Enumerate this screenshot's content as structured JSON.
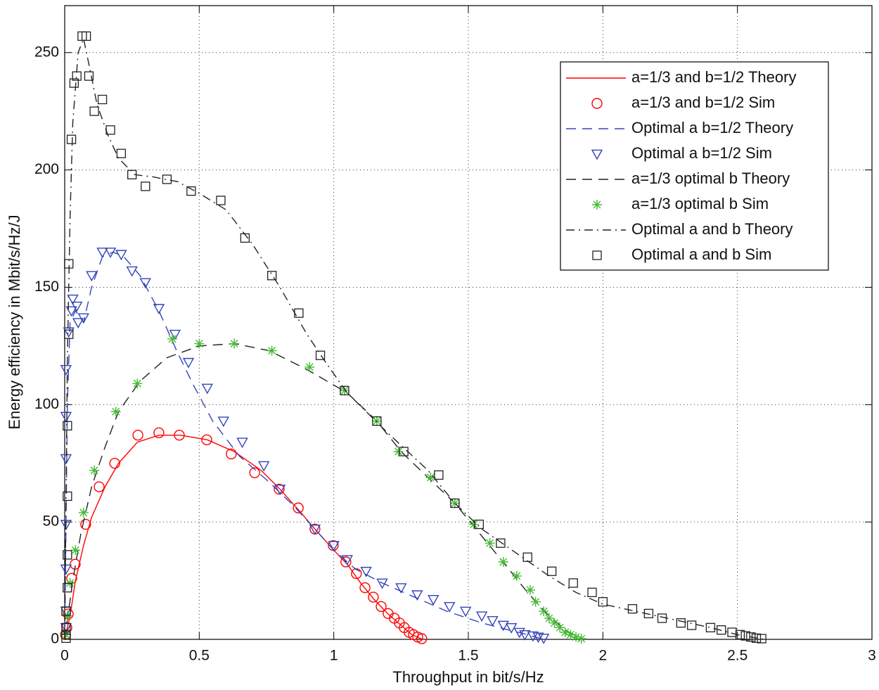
{
  "chart_data": {
    "type": "line",
    "xlabel": "Throughput in bit/s/Hz",
    "ylabel": "Energy efficiency in Mbit/s/Hz/J",
    "xlim": [
      0,
      3
    ],
    "ylim": [
      0,
      270
    ],
    "xticks": [
      0,
      0.5,
      1,
      1.5,
      2,
      2.5,
      3
    ],
    "yticks": [
      0,
      50,
      100,
      150,
      200,
      250
    ],
    "grid": true,
    "legend": "upper right",
    "series": [
      {
        "name": "a=1/3 and b=1/2 Theory",
        "color": "#ff0000",
        "dash": "solid",
        "marker": "none",
        "x": [
          0,
          0.02,
          0.04,
          0.07,
          0.1,
          0.15,
          0.2,
          0.27,
          0.35,
          0.43,
          0.53,
          0.63,
          0.73,
          0.8,
          0.87,
          0.93,
          1.0,
          1.05,
          1.1,
          1.15,
          1.2,
          1.25,
          1.29,
          1.32,
          1.33
        ],
        "values": [
          0,
          10,
          25,
          40,
          52,
          65,
          75,
          84,
          87,
          87,
          85,
          80,
          72,
          64,
          55,
          47,
          38,
          32,
          24,
          17,
          11,
          6,
          2,
          0.5,
          0
        ]
      },
      {
        "name": "a=1/3 and b=1/2 Sim",
        "color": "#ff0000",
        "dash": "none",
        "marker": "circle",
        "x": [
          0.003,
          0.008,
          0.013,
          0.026,
          0.039,
          0.078,
          0.128,
          0.186,
          0.272,
          0.35,
          0.426,
          0.528,
          0.619,
          0.706,
          0.797,
          0.868,
          0.93,
          0.998,
          1.045,
          1.084,
          1.116,
          1.147,
          1.176,
          1.202,
          1.225,
          1.244,
          1.262,
          1.28,
          1.296,
          1.312,
          1.327
        ],
        "values": [
          2,
          5,
          10.8,
          26,
          32,
          49,
          65,
          75,
          87,
          88,
          87,
          85,
          79,
          71,
          64,
          56,
          47,
          40,
          33,
          28,
          22,
          18,
          14,
          11,
          9,
          7,
          5,
          3,
          2,
          1,
          0.3
        ]
      },
      {
        "name": "Optimal a b=1/2 Theory",
        "color": "#3344bb",
        "dash": "dashed",
        "marker": "none",
        "x": [
          0,
          0.005,
          0.01,
          0.02,
          0.04,
          0.07,
          0.1,
          0.14,
          0.18,
          0.22,
          0.28,
          0.35,
          0.42,
          0.48,
          0.55,
          0.65,
          0.75,
          0.85,
          0.93,
          1.0,
          1.08,
          1.18,
          1.3,
          1.42,
          1.55,
          1.65,
          1.72,
          1.78
        ],
        "values": [
          0,
          50,
          100,
          135,
          140,
          135,
          150,
          163,
          165,
          163,
          155,
          140,
          122,
          108,
          93,
          78,
          68,
          57,
          47,
          38,
          30,
          24,
          18,
          12,
          7,
          4,
          2,
          0
        ]
      },
      {
        "name": "Optimal a b=1/2 Sim",
        "color": "#3344bb",
        "dash": "none",
        "marker": "triangle",
        "x": [
          0.005,
          0.005,
          0.005,
          0.005,
          0.005,
          0.005,
          0.005,
          0.015,
          0.025,
          0.03,
          0.045,
          0.05,
          0.07,
          0.1,
          0.14,
          0.17,
          0.21,
          0.25,
          0.3,
          0.35,
          0.41,
          0.46,
          0.53,
          0.59,
          0.66,
          0.74,
          0.8,
          0.93,
          1.0,
          1.05,
          1.12,
          1.18,
          1.25,
          1.31,
          1.37,
          1.43,
          1.49,
          1.55,
          1.59,
          1.63,
          1.66,
          1.69,
          1.71,
          1.74,
          1.76,
          1.78
        ],
        "values": [
          5,
          12,
          30,
          49,
          77,
          95,
          115,
          131,
          140,
          145,
          142,
          135,
          137,
          155,
          165,
          165,
          164,
          157,
          152,
          141,
          130,
          118,
          107,
          93,
          84,
          74,
          64,
          47,
          40,
          34,
          29,
          24,
          22,
          19,
          17,
          14,
          12,
          10,
          8,
          6,
          5,
          3,
          2,
          1.5,
          1,
          0.5
        ]
      },
      {
        "name": "a=1/3 optimal b Theory",
        "color": "#222222",
        "dash": "dashed",
        "marker": "none",
        "x": [
          0,
          0.03,
          0.06,
          0.1,
          0.15,
          0.2,
          0.28,
          0.38,
          0.5,
          0.63,
          0.76,
          0.9,
          1.05,
          1.16,
          1.25,
          1.35,
          1.45,
          1.55,
          1.65,
          1.72,
          1.8,
          1.86,
          1.92
        ],
        "values": [
          0,
          25,
          45,
          65,
          82,
          97,
          110,
          120,
          125,
          126,
          123,
          115,
          105,
          93,
          80,
          69,
          58,
          44,
          30,
          20,
          10,
          4,
          0
        ]
      },
      {
        "name": "a=1/3 optimal b Sim",
        "color": "#44bb33",
        "dash": "none",
        "marker": "star",
        "x": [
          0.005,
          0.01,
          0.02,
          0.04,
          0.07,
          0.11,
          0.19,
          0.27,
          0.4,
          0.5,
          0.63,
          0.77,
          0.91,
          1.04,
          1.16,
          1.24,
          1.36,
          1.45,
          1.52,
          1.58,
          1.63,
          1.68,
          1.73,
          1.75,
          1.78,
          1.8,
          1.82,
          1.84,
          1.86,
          1.88,
          1.9,
          1.92
        ],
        "values": [
          2,
          10,
          24,
          38,
          54,
          72,
          97,
          109,
          128,
          126,
          126,
          123,
          116,
          106,
          93,
          80,
          69,
          58,
          49,
          41,
          33,
          27,
          21,
          16,
          12,
          9,
          7,
          5,
          3,
          2,
          1,
          0.3
        ]
      },
      {
        "name": "Optimal a and b Theory",
        "color": "#222222",
        "dash": "dashdot",
        "marker": "none",
        "x": [
          0,
          0.005,
          0.01,
          0.02,
          0.03,
          0.05,
          0.07,
          0.09,
          0.12,
          0.16,
          0.2,
          0.26,
          0.33,
          0.42,
          0.5,
          0.6,
          0.7,
          0.8,
          0.9,
          0.97,
          1.05,
          1.2,
          1.35,
          1.45,
          1.55,
          1.7,
          1.8,
          1.9,
          2.0,
          2.2,
          2.4,
          2.5,
          2.6
        ],
        "values": [
          0,
          60,
          120,
          180,
          220,
          250,
          256,
          245,
          228,
          215,
          205,
          198,
          197,
          195,
          190,
          183,
          168,
          150,
          130,
          118,
          105,
          88,
          72,
          58,
          47,
          35,
          27,
          20,
          15,
          10,
          5,
          2,
          0
        ]
      },
      {
        "name": "Optimal a and b Sim",
        "color": "#222222",
        "dash": "none",
        "marker": "square",
        "x": [
          0.005,
          0.005,
          0.005,
          0.005,
          0.01,
          0.01,
          0.01,
          0.01,
          0.015,
          0.015,
          0.025,
          0.035,
          0.045,
          0.065,
          0.08,
          0.09,
          0.11,
          0.14,
          0.17,
          0.21,
          0.25,
          0.3,
          0.38,
          0.47,
          0.58,
          0.67,
          0.77,
          0.87,
          0.95,
          1.04,
          1.16,
          1.26,
          1.39,
          1.45,
          1.54,
          1.62,
          1.72,
          1.81,
          1.89,
          1.96,
          2.0,
          2.11,
          2.17,
          2.22,
          2.29,
          2.33,
          2.4,
          2.44,
          2.48,
          2.51,
          2.53,
          2.55,
          2.57,
          2.59
        ],
        "values": [
          0.5,
          2,
          5,
          12,
          22,
          36,
          61,
          91,
          130,
          160,
          213,
          237,
          240,
          257,
          257,
          240,
          225,
          230,
          217,
          207,
          198,
          193,
          196,
          191,
          187,
          171,
          155,
          139,
          121,
          106,
          93,
          80,
          70,
          58,
          49,
          41,
          35,
          29,
          24,
          20,
          16,
          13,
          11,
          9,
          7,
          6,
          5,
          4,
          3,
          2,
          1.5,
          1,
          0.5,
          0.3
        ]
      }
    ]
  }
}
